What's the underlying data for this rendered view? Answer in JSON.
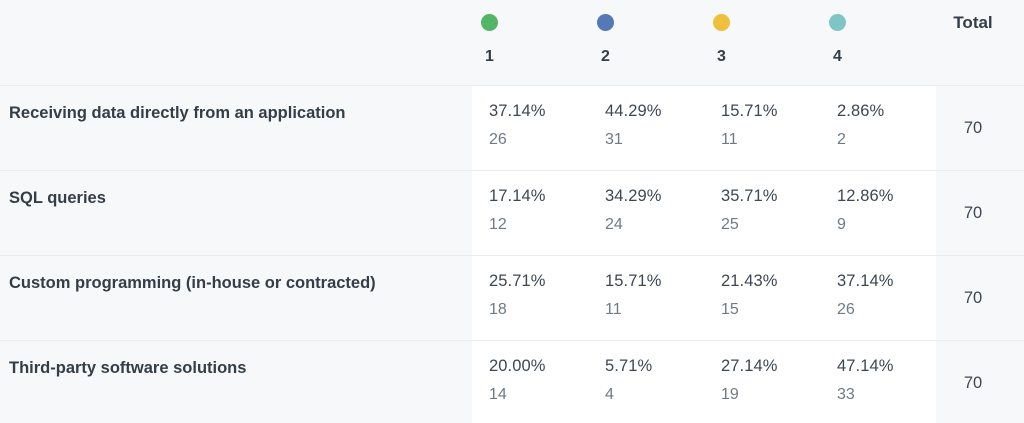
{
  "header": {
    "total_label": "Total",
    "options": [
      {
        "number": "1",
        "color": "#53b567",
        "dot_name": "green-dot"
      },
      {
        "number": "2",
        "color": "#5578b6",
        "dot_name": "blue-dot"
      },
      {
        "number": "3",
        "color": "#eec03d",
        "dot_name": "yellow-dot"
      },
      {
        "number": "4",
        "color": "#7fc5c5",
        "dot_name": "teal-dot"
      }
    ]
  },
  "rows": [
    {
      "label": "Receiving data directly from an application",
      "cells": [
        {
          "percent": "37.14%",
          "count": "26"
        },
        {
          "percent": "44.29%",
          "count": "31"
        },
        {
          "percent": "15.71%",
          "count": "11"
        },
        {
          "percent": "2.86%",
          "count": "2"
        }
      ],
      "total": "70"
    },
    {
      "label": "SQL queries",
      "cells": [
        {
          "percent": "17.14%",
          "count": "12"
        },
        {
          "percent": "34.29%",
          "count": "24"
        },
        {
          "percent": "35.71%",
          "count": "25"
        },
        {
          "percent": "12.86%",
          "count": "9"
        }
      ],
      "total": "70"
    },
    {
      "label": "Custom programming (in-house or contracted)",
      "cells": [
        {
          "percent": "25.71%",
          "count": "18"
        },
        {
          "percent": "15.71%",
          "count": "11"
        },
        {
          "percent": "21.43%",
          "count": "15"
        },
        {
          "percent": "37.14%",
          "count": "26"
        }
      ],
      "total": "70"
    },
    {
      "label": "Third-party software solutions",
      "cells": [
        {
          "percent": "20.00%",
          "count": "14"
        },
        {
          "percent": "5.71%",
          "count": "4"
        },
        {
          "percent": "27.14%",
          "count": "19"
        },
        {
          "percent": "47.14%",
          "count": "33"
        }
      ],
      "total": "70"
    }
  ],
  "colors": {
    "row_label_background": "#f7f8f9",
    "cell_background": "#ffffff",
    "border": "#e9ebee",
    "label_text": "#333e48",
    "percent_text": "#3d4752",
    "count_text": "#6f7a84"
  }
}
